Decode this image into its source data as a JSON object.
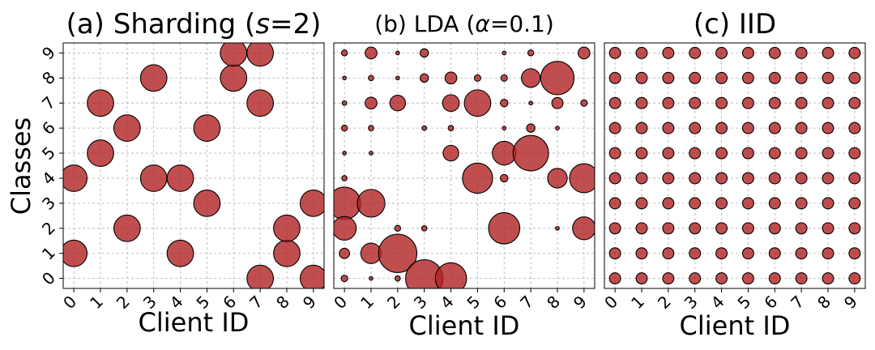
{
  "figure": {
    "marker_color": "#b22222",
    "edge_color": "#000000",
    "grid_color": "#b0b0b0"
  },
  "chart_data": [
    {
      "type": "scatter",
      "title": "(a) Sharding (s=2)",
      "title_parts": [
        "(a) Sharding (",
        "s",
        "=2)"
      ],
      "xlabel": "Client ID",
      "ylabel": "Classes",
      "x_ticks": [
        "0",
        "1",
        "2",
        "3",
        "4",
        "5",
        "6",
        "7",
        "8",
        "9"
      ],
      "y_ticks": [
        "0",
        "1",
        "2",
        "3",
        "4",
        "5",
        "6",
        "7",
        "8",
        "9"
      ],
      "xlim": [
        -0.4,
        9.4
      ],
      "ylim": [
        -0.4,
        9.4
      ],
      "grid": true,
      "points": [
        {
          "client": 0,
          "class": 1,
          "size": 1
        },
        {
          "client": 0,
          "class": 4,
          "size": 1
        },
        {
          "client": 1,
          "class": 5,
          "size": 1
        },
        {
          "client": 1,
          "class": 7,
          "size": 1
        },
        {
          "client": 2,
          "class": 2,
          "size": 1
        },
        {
          "client": 2,
          "class": 6,
          "size": 1
        },
        {
          "client": 3,
          "class": 4,
          "size": 1
        },
        {
          "client": 3,
          "class": 8,
          "size": 1
        },
        {
          "client": 4,
          "class": 1,
          "size": 1
        },
        {
          "client": 4,
          "class": 4,
          "size": 1
        },
        {
          "client": 5,
          "class": 3,
          "size": 1
        },
        {
          "client": 5,
          "class": 6,
          "size": 1
        },
        {
          "client": 6,
          "class": 8,
          "size": 1
        },
        {
          "client": 6,
          "class": 9,
          "size": 1
        },
        {
          "client": 7,
          "class": 0,
          "size": 1
        },
        {
          "client": 7,
          "class": 7,
          "size": 1
        },
        {
          "client": 7,
          "class": 9,
          "size": 1
        },
        {
          "client": 8,
          "class": 1,
          "size": 1
        },
        {
          "client": 8,
          "class": 2,
          "size": 1
        },
        {
          "client": 9,
          "class": 0,
          "size": 1
        },
        {
          "client": 9,
          "class": 3,
          "size": 1
        }
      ]
    },
    {
      "type": "scatter",
      "title": "(b) LDA (α=0.1)",
      "title_parts": [
        "(b) LDA (",
        "α",
        "=0.1)"
      ],
      "xlabel": "Client ID",
      "ylabel": "",
      "x_ticks": [
        "0",
        "1",
        "2",
        "3",
        "4",
        "5",
        "6",
        "7",
        "8",
        "9"
      ],
      "y_ticks": [],
      "xlim": [
        -0.4,
        9.4
      ],
      "ylim": [
        -0.4,
        9.4
      ],
      "grid": true,
      "points": [
        {
          "client": 0,
          "class": 9,
          "size": 0.05
        },
        {
          "client": 0,
          "class": 8,
          "size": 0.02
        },
        {
          "client": 0,
          "class": 7,
          "size": 0.03
        },
        {
          "client": 0,
          "class": 6,
          "size": 0.05
        },
        {
          "client": 0,
          "class": 5,
          "size": 0.02
        },
        {
          "client": 0,
          "class": 4,
          "size": 0.04
        },
        {
          "client": 0,
          "class": 3,
          "size": 1.5
        },
        {
          "client": 0,
          "class": 2,
          "size": 0.8
        },
        {
          "client": 0,
          "class": 1,
          "size": 0.15
        },
        {
          "client": 0,
          "class": 0,
          "size": 0.06
        },
        {
          "client": 1,
          "class": 9,
          "size": 0.2
        },
        {
          "client": 1,
          "class": 8,
          "size": 0.04
        },
        {
          "client": 1,
          "class": 7,
          "size": 0.2
        },
        {
          "client": 1,
          "class": 6,
          "size": 0.04
        },
        {
          "client": 1,
          "class": 5,
          "size": 0.02
        },
        {
          "client": 1,
          "class": 3,
          "size": 1.1
        },
        {
          "client": 1,
          "class": 1,
          "size": 0.6
        },
        {
          "client": 1,
          "class": 0,
          "size": 0.02
        },
        {
          "client": 2,
          "class": 9,
          "size": 0.02
        },
        {
          "client": 2,
          "class": 8,
          "size": 0.02
        },
        {
          "client": 2,
          "class": 7,
          "size": 0.35
        },
        {
          "client": 2,
          "class": 2,
          "size": 0.05
        },
        {
          "client": 2,
          "class": 1,
          "size": 2.1
        },
        {
          "client": 2,
          "class": 0,
          "size": 0.04
        },
        {
          "client": 3,
          "class": 9,
          "size": 0.1
        },
        {
          "client": 3,
          "class": 8,
          "size": 0.1
        },
        {
          "client": 3,
          "class": 6,
          "size": 0.03
        },
        {
          "client": 3,
          "class": 2,
          "size": 0.04
        },
        {
          "client": 3,
          "class": 0,
          "size": 2.0
        },
        {
          "client": 4,
          "class": 8,
          "size": 0.2
        },
        {
          "client": 4,
          "class": 7,
          "size": 0.4
        },
        {
          "client": 4,
          "class": 6,
          "size": 0.04
        },
        {
          "client": 4,
          "class": 5,
          "size": 0.35
        },
        {
          "client": 4,
          "class": 0,
          "size": 1.4
        },
        {
          "client": 5,
          "class": 8,
          "size": 0.06
        },
        {
          "client": 5,
          "class": 7,
          "size": 1.0
        },
        {
          "client": 5,
          "class": 4,
          "size": 1.3
        },
        {
          "client": 6,
          "class": 9,
          "size": 0.02
        },
        {
          "client": 6,
          "class": 8,
          "size": 0.06
        },
        {
          "client": 6,
          "class": 7,
          "size": 0.08
        },
        {
          "client": 6,
          "class": 6,
          "size": 0.02
        },
        {
          "client": 6,
          "class": 5,
          "size": 0.8
        },
        {
          "client": 6,
          "class": 4,
          "size": 0.08
        },
        {
          "client": 6,
          "class": 2,
          "size": 1.4
        },
        {
          "client": 7,
          "class": 9,
          "size": 0.05
        },
        {
          "client": 7,
          "class": 8,
          "size": 0.5
        },
        {
          "client": 7,
          "class": 7,
          "size": 0.02
        },
        {
          "client": 7,
          "class": 6,
          "size": 0.1
        },
        {
          "client": 7,
          "class": 5,
          "size": 1.8
        },
        {
          "client": 8,
          "class": 8,
          "size": 1.6
        },
        {
          "client": 8,
          "class": 7,
          "size": 0.18
        },
        {
          "client": 8,
          "class": 6,
          "size": 0.02
        },
        {
          "client": 8,
          "class": 4,
          "size": 0.55
        },
        {
          "client": 8,
          "class": 2,
          "size": 0.02
        },
        {
          "client": 9,
          "class": 9,
          "size": 0.2
        },
        {
          "client": 9,
          "class": 7,
          "size": 0.06
        },
        {
          "client": 9,
          "class": 4,
          "size": 1.2
        },
        {
          "client": 9,
          "class": 2,
          "size": 0.75
        }
      ]
    },
    {
      "type": "scatter",
      "title": "(c) IID",
      "title_parts": [
        "(c) IID",
        "",
        ""
      ],
      "xlabel": "Client ID",
      "ylabel": "",
      "x_ticks": [
        "0",
        "1",
        "2",
        "3",
        "4",
        "5",
        "6",
        "7",
        "8",
        "9"
      ],
      "y_ticks": [],
      "xlim": [
        -0.4,
        9.4
      ],
      "ylim": [
        -0.4,
        9.4
      ],
      "grid": true,
      "uniform_size": 0.18
    }
  ]
}
